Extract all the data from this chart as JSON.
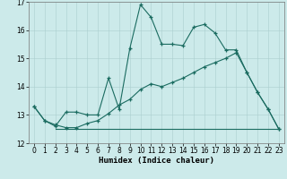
{
  "xlabel": "Humidex (Indice chaleur)",
  "xlim": [
    -0.5,
    23.5
  ],
  "ylim": [
    12,
    17
  ],
  "yticks": [
    12,
    13,
    14,
    15,
    16,
    17
  ],
  "xticks": [
    0,
    1,
    2,
    3,
    4,
    5,
    6,
    7,
    8,
    9,
    10,
    11,
    12,
    13,
    14,
    15,
    16,
    17,
    18,
    19,
    20,
    21,
    22,
    23
  ],
  "bg_color": "#cceaea",
  "line_color": "#1a6b60",
  "line1_x": [
    0,
    1,
    2,
    3,
    4,
    5,
    6,
    7,
    8,
    9,
    10,
    11,
    12,
    13,
    14,
    15,
    16,
    17,
    18,
    19,
    20,
    21,
    22,
    23
  ],
  "line1_y": [
    13.3,
    12.8,
    12.6,
    13.1,
    13.1,
    13.0,
    13.0,
    14.3,
    13.2,
    15.35,
    16.9,
    16.45,
    15.5,
    15.5,
    15.45,
    16.1,
    16.2,
    15.9,
    15.3,
    15.3,
    14.5,
    13.8,
    13.2,
    12.5
  ],
  "line2_x": [
    0,
    1,
    2,
    3,
    4,
    5,
    6,
    7,
    8,
    9,
    10,
    11,
    12,
    13,
    14,
    15,
    16,
    17,
    18,
    19,
    20,
    21,
    22,
    23
  ],
  "line2_y": [
    13.3,
    12.8,
    12.65,
    12.55,
    12.55,
    12.7,
    12.8,
    13.05,
    13.35,
    13.55,
    13.9,
    14.1,
    14.0,
    14.15,
    14.3,
    14.5,
    14.7,
    14.85,
    15.0,
    15.2,
    14.5,
    13.8,
    13.2,
    12.5
  ],
  "line3_x": [
    2,
    23
  ],
  "line3_y": [
    12.5,
    12.5
  ]
}
